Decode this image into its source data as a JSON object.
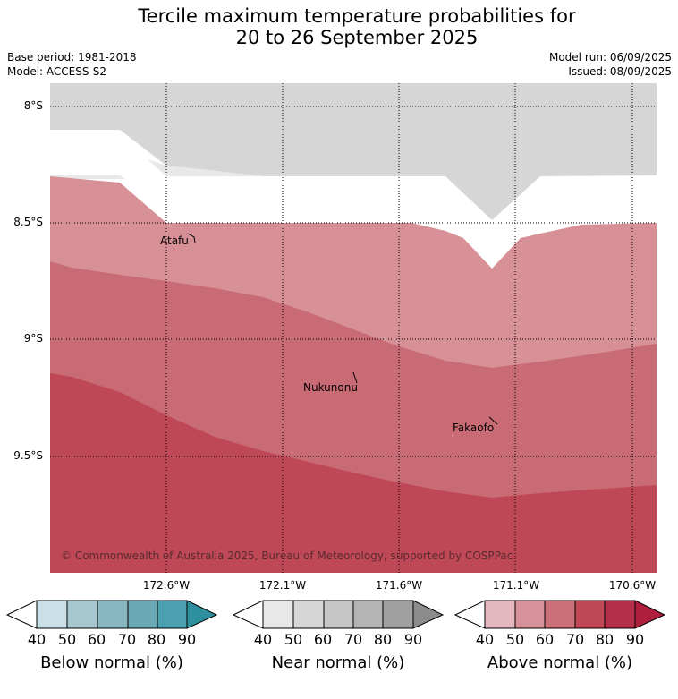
{
  "title_line1": "Tercile maximum temperature probabilities for",
  "title_line2": "20 to 26 September 2025",
  "base_period": "Base period: 1981-2018",
  "model": "Model: ACCESS-S2",
  "model_run": "Model run: 06/09/2025",
  "issued": "Issued: 08/09/2025",
  "copyright": "© Commonwealth of Australia 2025, Bureau of Meteorology, supported by COSPPac",
  "lat_labels": [
    "8°S",
    "8.5°S",
    "9°S",
    "9.5°S"
  ],
  "lon_labels": [
    "172.6°W",
    "172.1°W",
    "171.6°W",
    "171.1°W",
    "170.6°W"
  ],
  "places": [
    "Atafu",
    "Nukunonu",
    "Fakaofo"
  ],
  "colorbars": [
    {
      "label": "Below normal (%)",
      "ticks": [
        "40",
        "50",
        "60",
        "70",
        "80",
        "90"
      ],
      "colors": [
        "#ffffff",
        "#c8e0e6",
        "#a8c8cf",
        "#88b6c1",
        "#6aa8b4",
        "#4ba0b0",
        "#2e8f9e"
      ]
    },
    {
      "label": "Near normal (%)",
      "ticks": [
        "40",
        "50",
        "60",
        "70",
        "80",
        "90"
      ],
      "colors": [
        "#ffffff",
        "#e8e8e8",
        "#d6d6d6",
        "#c6c6c6",
        "#b4b4b4",
        "#a0a0a0",
        "#8c8c8c"
      ]
    },
    {
      "label": "Above normal (%)",
      "ticks": [
        "40",
        "50",
        "60",
        "70",
        "80",
        "90"
      ],
      "colors": [
        "#ffffff",
        "#e3b8bf",
        "#d8929a",
        "#cc7078",
        "#c04856",
        "#b2304a",
        "#b0203e"
      ]
    }
  ],
  "colors": {
    "near_normal_fill": "#d6d6d6",
    "near_normal_light": "#e8e8e8",
    "above_50_60": "#d69096",
    "above_60_70": "#c96b74",
    "above_70_80": "#bf4856"
  }
}
